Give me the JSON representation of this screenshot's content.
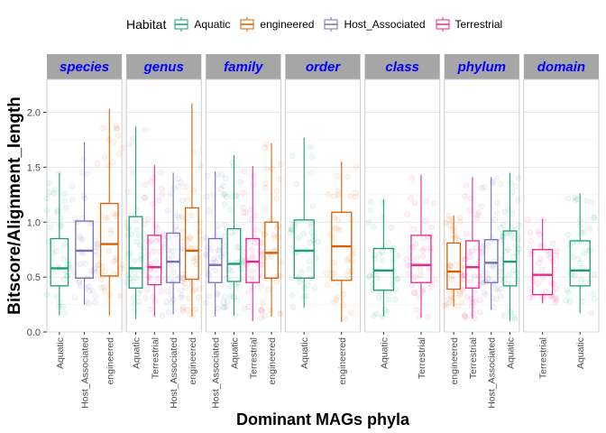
{
  "chart_data": {
    "type": "boxplot",
    "ylabel": "Bitscore/Alignment_length",
    "xlabel": "Dominant MAGs phyla",
    "ylim": [
      0,
      2.3
    ],
    "yticks": [
      0.0,
      0.5,
      1.0,
      1.5,
      2.0
    ],
    "ytick_labels": [
      "0.0",
      "0.5",
      "1.0",
      "1.5",
      "2.0"
    ],
    "grid": true,
    "legend_position": "top",
    "legend": {
      "title": "Habitat",
      "entries": [
        {
          "name": "Aquatic",
          "color": "#1b9e77"
        },
        {
          "name": "engineered",
          "color": "#d95f02"
        },
        {
          "name": "Host_Associated",
          "color": "#7570b3"
        },
        {
          "name": "Terrestrial",
          "color": "#e7298a"
        }
      ]
    },
    "strip_style": {
      "background": "#a6a6a6",
      "text_color": "#0000ff"
    },
    "panels": [
      {
        "title": "species",
        "boxes": [
          {
            "label": "Aquatic",
            "habitat": "Aquatic",
            "min": 0.15,
            "q1": 0.42,
            "median": 0.58,
            "q3": 0.85,
            "max": 1.45
          },
          {
            "label": "Host_Associated",
            "habitat": "Host_Associated",
            "min": 0.25,
            "q1": 0.49,
            "median": 0.74,
            "q3": 1.01,
            "max": 1.73
          },
          {
            "label": "engineered",
            "habitat": "engineered",
            "min": 0.15,
            "q1": 0.51,
            "median": 0.8,
            "q3": 1.17,
            "max": 2.03
          }
        ]
      },
      {
        "title": "genus",
        "boxes": [
          {
            "label": "Aquatic",
            "habitat": "Aquatic",
            "min": 0.12,
            "q1": 0.4,
            "median": 0.58,
            "q3": 1.05,
            "max": 1.87
          },
          {
            "label": "Terrestrial",
            "habitat": "Terrestrial",
            "min": 0.14,
            "q1": 0.43,
            "median": 0.59,
            "q3": 0.88,
            "max": 1.52
          },
          {
            "label": "Host_Associated",
            "habitat": "Host_Associated",
            "min": 0.16,
            "q1": 0.45,
            "median": 0.64,
            "q3": 0.9,
            "max": 1.45
          },
          {
            "label": "engineered",
            "habitat": "engineered",
            "min": 0.14,
            "q1": 0.48,
            "median": 0.74,
            "q3": 1.13,
            "max": 2.08
          }
        ]
      },
      {
        "title": "family",
        "boxes": [
          {
            "label": "Host_Associated",
            "habitat": "Host_Associated",
            "min": 0.14,
            "q1": 0.45,
            "median": 0.61,
            "q3": 0.85,
            "max": 1.46
          },
          {
            "label": "Aquatic",
            "habitat": "Aquatic",
            "min": 0.15,
            "q1": 0.46,
            "median": 0.62,
            "q3": 0.94,
            "max": 1.61
          },
          {
            "label": "Terrestrial",
            "habitat": "Terrestrial",
            "min": 0.1,
            "q1": 0.45,
            "median": 0.64,
            "q3": 0.85,
            "max": 1.51
          },
          {
            "label": "engineered",
            "habitat": "engineered",
            "min": 0.14,
            "q1": 0.49,
            "median": 0.72,
            "q3": 1.0,
            "max": 1.72
          }
        ]
      },
      {
        "title": "order",
        "boxes": [
          {
            "label": "Aquatic",
            "habitat": "Aquatic",
            "min": 0.22,
            "q1": 0.49,
            "median": 0.74,
            "q3": 1.02,
            "max": 1.77
          },
          {
            "label": "engineered",
            "habitat": "engineered",
            "min": 0.09,
            "q1": 0.47,
            "median": 0.78,
            "q3": 1.09,
            "max": 1.55
          }
        ]
      },
      {
        "title": "class",
        "boxes": [
          {
            "label": "Aquatic",
            "habitat": "Aquatic",
            "min": 0.14,
            "q1": 0.38,
            "median": 0.56,
            "q3": 0.76,
            "max": 1.21
          },
          {
            "label": "Terrestrial",
            "habitat": "Terrestrial",
            "min": 0.13,
            "q1": 0.45,
            "median": 0.61,
            "q3": 0.88,
            "max": 1.43
          }
        ]
      },
      {
        "title": "phylum",
        "boxes": [
          {
            "label": "engineered",
            "habitat": "engineered",
            "min": 0.23,
            "q1": 0.39,
            "median": 0.55,
            "q3": 0.81,
            "max": 1.06
          },
          {
            "label": "Terrestrial",
            "habitat": "Terrestrial",
            "min": 0.12,
            "q1": 0.4,
            "median": 0.59,
            "q3": 0.83,
            "max": 1.41
          },
          {
            "label": "Host_Associated",
            "habitat": "Host_Associated",
            "min": 0.2,
            "q1": 0.45,
            "median": 0.63,
            "q3": 0.84,
            "max": 1.41
          },
          {
            "label": "Aquatic",
            "habitat": "Aquatic",
            "min": 0.1,
            "q1": 0.42,
            "median": 0.64,
            "q3": 0.92,
            "max": 1.45
          }
        ]
      },
      {
        "title": "domain",
        "boxes": [
          {
            "label": "Terrestrial",
            "habitat": "Terrestrial",
            "min": 0.26,
            "q1": 0.34,
            "median": 0.52,
            "q3": 0.75,
            "max": 1.03
          },
          {
            "label": "Aquatic",
            "habitat": "Aquatic",
            "min": 0.17,
            "q1": 0.42,
            "median": 0.56,
            "q3": 0.83,
            "max": 1.26
          }
        ]
      }
    ]
  }
}
